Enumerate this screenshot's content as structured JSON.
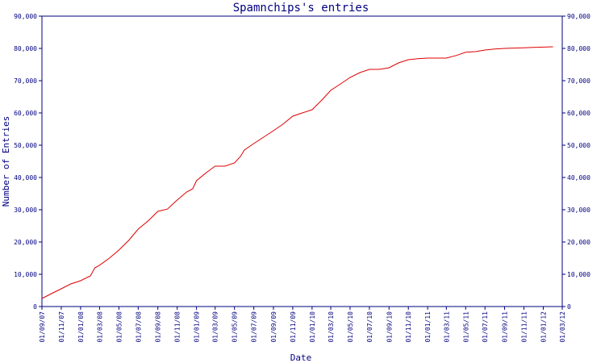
{
  "chart_data": {
    "type": "line",
    "title": "Spamnchips's entries",
    "xlabel": "Date",
    "ylabel": "Number of Entries",
    "x_tick_labels": [
      "01/09/07",
      "01/11/07",
      "01/01/08",
      "01/03/08",
      "01/05/08",
      "01/07/08",
      "01/09/08",
      "01/11/08",
      "01/01/09",
      "01/03/09",
      "01/05/09",
      "01/07/09",
      "01/09/09",
      "01/11/09",
      "01/01/10",
      "01/03/10",
      "01/05/10",
      "01/07/10",
      "01/09/10",
      "01/11/10",
      "01/01/11",
      "01/03/11",
      "01/05/11",
      "01/07/11",
      "01/09/11",
      "01/11/11",
      "01/01/12",
      "01/03/12"
    ],
    "y_tick_labels": [
      "0",
      "10,000",
      "20,000",
      "30,000",
      "40,000",
      "50,000",
      "60,000",
      "70,000",
      "80,000",
      "90,000"
    ],
    "ylim": [
      0,
      90000
    ],
    "grid": false,
    "line_color": "#e00000",
    "axis_color": "#000080",
    "series": [
      {
        "x": [
          "2007-09-01",
          "2007-10-01",
          "2007-11-01",
          "2007-12-01",
          "2008-01-01",
          "2008-02-01",
          "2008-02-15",
          "2008-03-01",
          "2008-04-01",
          "2008-05-01",
          "2008-06-01",
          "2008-07-01",
          "2008-08-01",
          "2008-09-01",
          "2008-10-01",
          "2008-11-01",
          "2008-12-01",
          "2008-12-20",
          "2009-01-01",
          "2009-02-01",
          "2009-03-01",
          "2009-04-01",
          "2009-05-01",
          "2009-05-20",
          "2009-06-01",
          "2009-07-01",
          "2009-08-01",
          "2009-09-01",
          "2009-10-01",
          "2009-11-01",
          "2009-12-01",
          "2010-01-01",
          "2010-02-01",
          "2010-03-01",
          "2010-04-01",
          "2010-05-01",
          "2010-06-01",
          "2010-07-01",
          "2010-08-01",
          "2010-09-01",
          "2010-10-01",
          "2010-11-01",
          "2010-12-01",
          "2011-01-01",
          "2011-02-01",
          "2011-03-01",
          "2011-04-01",
          "2011-05-01",
          "2011-06-01",
          "2011-07-01",
          "2011-08-01",
          "2011-09-01",
          "2011-10-01",
          "2011-11-01",
          "2011-12-01",
          "2012-01-01",
          "2012-02-01"
        ],
        "y": [
          2500,
          4000,
          5500,
          7000,
          8000,
          9500,
          12000,
          12800,
          15000,
          17500,
          20500,
          24000,
          26500,
          29500,
          30200,
          33000,
          35500,
          36500,
          39000,
          41500,
          43500,
          43500,
          44500,
          46500,
          48500,
          50500,
          52500,
          54500,
          56500,
          59000,
          60000,
          61000,
          64000,
          67000,
          69000,
          71000,
          72500,
          73500,
          73500,
          74000,
          75500,
          76500,
          76800,
          77000,
          77000,
          77000,
          77800,
          78800,
          79000,
          79500,
          79800,
          80000,
          80100,
          80200,
          80300,
          80400,
          80500
        ]
      }
    ]
  }
}
